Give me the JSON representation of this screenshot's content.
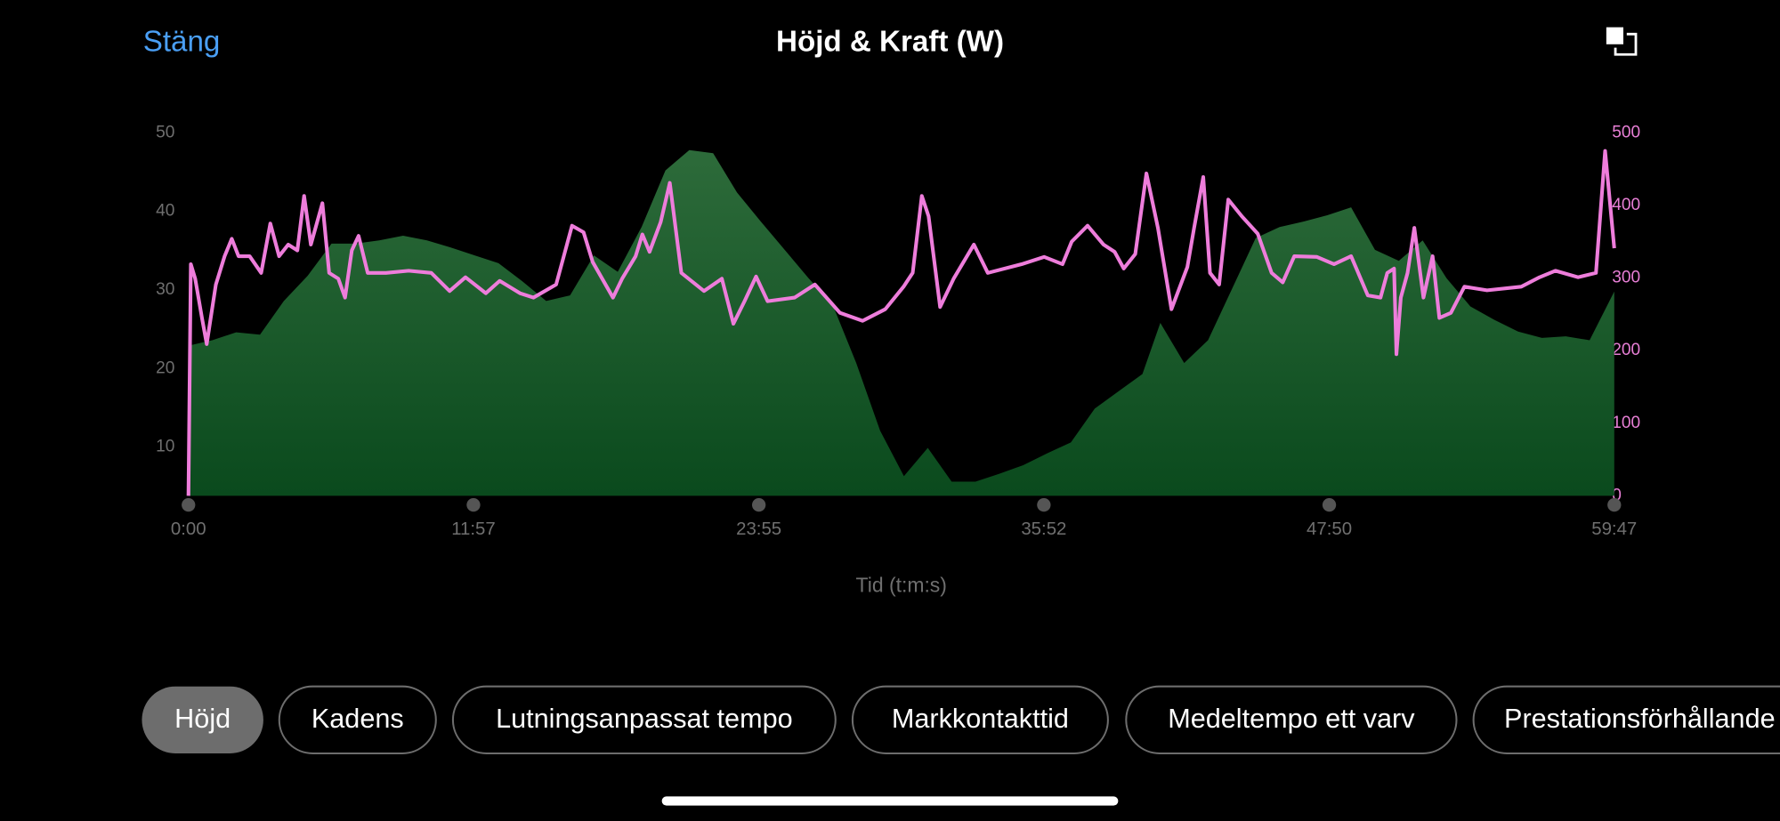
{
  "header": {
    "close": "Stäng"
  },
  "chart_data": {
    "type": "combo",
    "title": "Höjd & Kraft (W)",
    "xlabel": "Tid (t:m:s)",
    "xlim": [
      0,
      3587
    ],
    "xticks": [
      {
        "value": 0,
        "label": "0:00"
      },
      {
        "value": 717,
        "label": "11:57"
      },
      {
        "value": 1435,
        "label": "23:55"
      },
      {
        "value": 2152,
        "label": "35:52"
      },
      {
        "value": 2870,
        "label": "47:50"
      },
      {
        "value": 3587,
        "label": "59:47"
      }
    ],
    "ylim": [
      3.8,
      50
    ],
    "yticks": [
      10,
      20,
      30,
      40,
      50
    ],
    "y2lim": [
      0,
      500
    ],
    "y2ticks": [
      0,
      100,
      200,
      300,
      400,
      500
    ],
    "series": [
      {
        "type": "area",
        "color": "#2d6b3a",
        "x": [
          0,
          60,
          120,
          180,
          240,
          300,
          360,
          420,
          480,
          540,
          600,
          660,
          720,
          780,
          840,
          900,
          960,
          1020,
          1080,
          1140,
          1200,
          1260,
          1320,
          1380,
          1440,
          1500,
          1560,
          1620,
          1680,
          1740,
          1800,
          1860,
          1920,
          1980,
          2040,
          2100,
          2160,
          2220,
          2280,
          2340,
          2400,
          2445,
          2505,
          2565,
          2625,
          2685,
          2745,
          2805,
          2865,
          2925,
          2985,
          3045,
          3105,
          3165,
          3225,
          3285,
          3345,
          3405,
          3465,
          3525,
          3587
        ],
        "values": [
          22.9,
          23.6,
          24.6,
          24.3,
          28.6,
          31.8,
          35.9,
          35.9,
          36.3,
          36.9,
          36.3,
          35.4,
          34.4,
          33.4,
          31.1,
          28.6,
          29.3,
          34.4,
          32.3,
          38.0,
          45.2,
          47.8,
          47.4,
          42.4,
          38.7,
          35.1,
          31.5,
          28.2,
          20.7,
          12.1,
          6.3,
          9.9,
          5.6,
          5.6,
          6.6,
          7.7,
          9.2,
          10.6,
          14.9,
          17.1,
          19.3,
          25.8,
          20.7,
          23.6,
          30.1,
          36.6,
          38.0,
          38.7,
          39.5,
          40.5,
          35.1,
          33.7,
          36.3,
          31.5,
          27.9,
          26.2,
          24.7,
          23.9,
          24.1,
          23.6,
          29.8
        ]
      },
      {
        "type": "line",
        "axis": "y2",
        "color": "#ee7ddb",
        "x": [
          0,
          6,
          17,
          34,
          46,
          69,
          91,
          109,
          126,
          154,
          183,
          206,
          228,
          251,
          274,
          291,
          308,
          337,
          354,
          377,
          394,
          411,
          428,
          451,
          497,
          554,
          611,
          657,
          697,
          748,
          783,
          834,
          868,
          925,
          965,
          994,
          1017,
          1068,
          1091,
          1125,
          1142,
          1160,
          1188,
          1211,
          1240,
          1297,
          1342,
          1371,
          1399,
          1428,
          1457,
          1525,
          1576,
          1639,
          1696,
          1753,
          1799,
          1822,
          1845,
          1862,
          1891,
          1925,
          1976,
          2011,
          2096,
          2153,
          2199,
          2222,
          2262,
          2302,
          2330,
          2353,
          2382,
          2410,
          2439,
          2473,
          2513,
          2530,
          2553,
          2570,
          2593,
          2616,
          2650,
          2690,
          2725,
          2753,
          2782,
          2839,
          2882,
          2925,
          2967,
          2999,
          3016,
          3033,
          3039,
          3050,
          3067,
          3084,
          3107,
          3130,
          3147,
          3176,
          3210,
          3267,
          3353,
          3399,
          3439,
          3496,
          3541,
          3564,
          3587
        ],
        "values": [
          0,
          319,
          299,
          245,
          209,
          291,
          330,
          354,
          330,
          330,
          307,
          375,
          330,
          346,
          338,
          413,
          346,
          403,
          307,
          299,
          273,
          338,
          358,
          307,
          307,
          310,
          307,
          282,
          301,
          279,
          296,
          279,
          273,
          291,
          372,
          363,
          322,
          273,
          299,
          330,
          360,
          336,
          377,
          431,
          307,
          282,
          299,
          237,
          268,
          302,
          268,
          273,
          291,
          252,
          241,
          257,
          288,
          307,
          413,
          385,
          260,
          299,
          346,
          307,
          319,
          329,
          319,
          350,
          372,
          346,
          336,
          313,
          333,
          444,
          369,
          257,
          315,
          369,
          439,
          307,
          291,
          408,
          385,
          361,
          307,
          294,
          330,
          329,
          319,
          330,
          276,
          273,
          307,
          313,
          195,
          273,
          307,
          369,
          273,
          330,
          245,
          252,
          288,
          283,
          288,
          301,
          310,
          301,
          307,
          475,
          341
        ]
      }
    ]
  },
  "tabs": [
    "Höjd",
    "Kadens",
    "Lutningsanpassat tempo",
    "Markkontakttid",
    "Medeltempo ett varv",
    "Prestationsförhållande"
  ]
}
